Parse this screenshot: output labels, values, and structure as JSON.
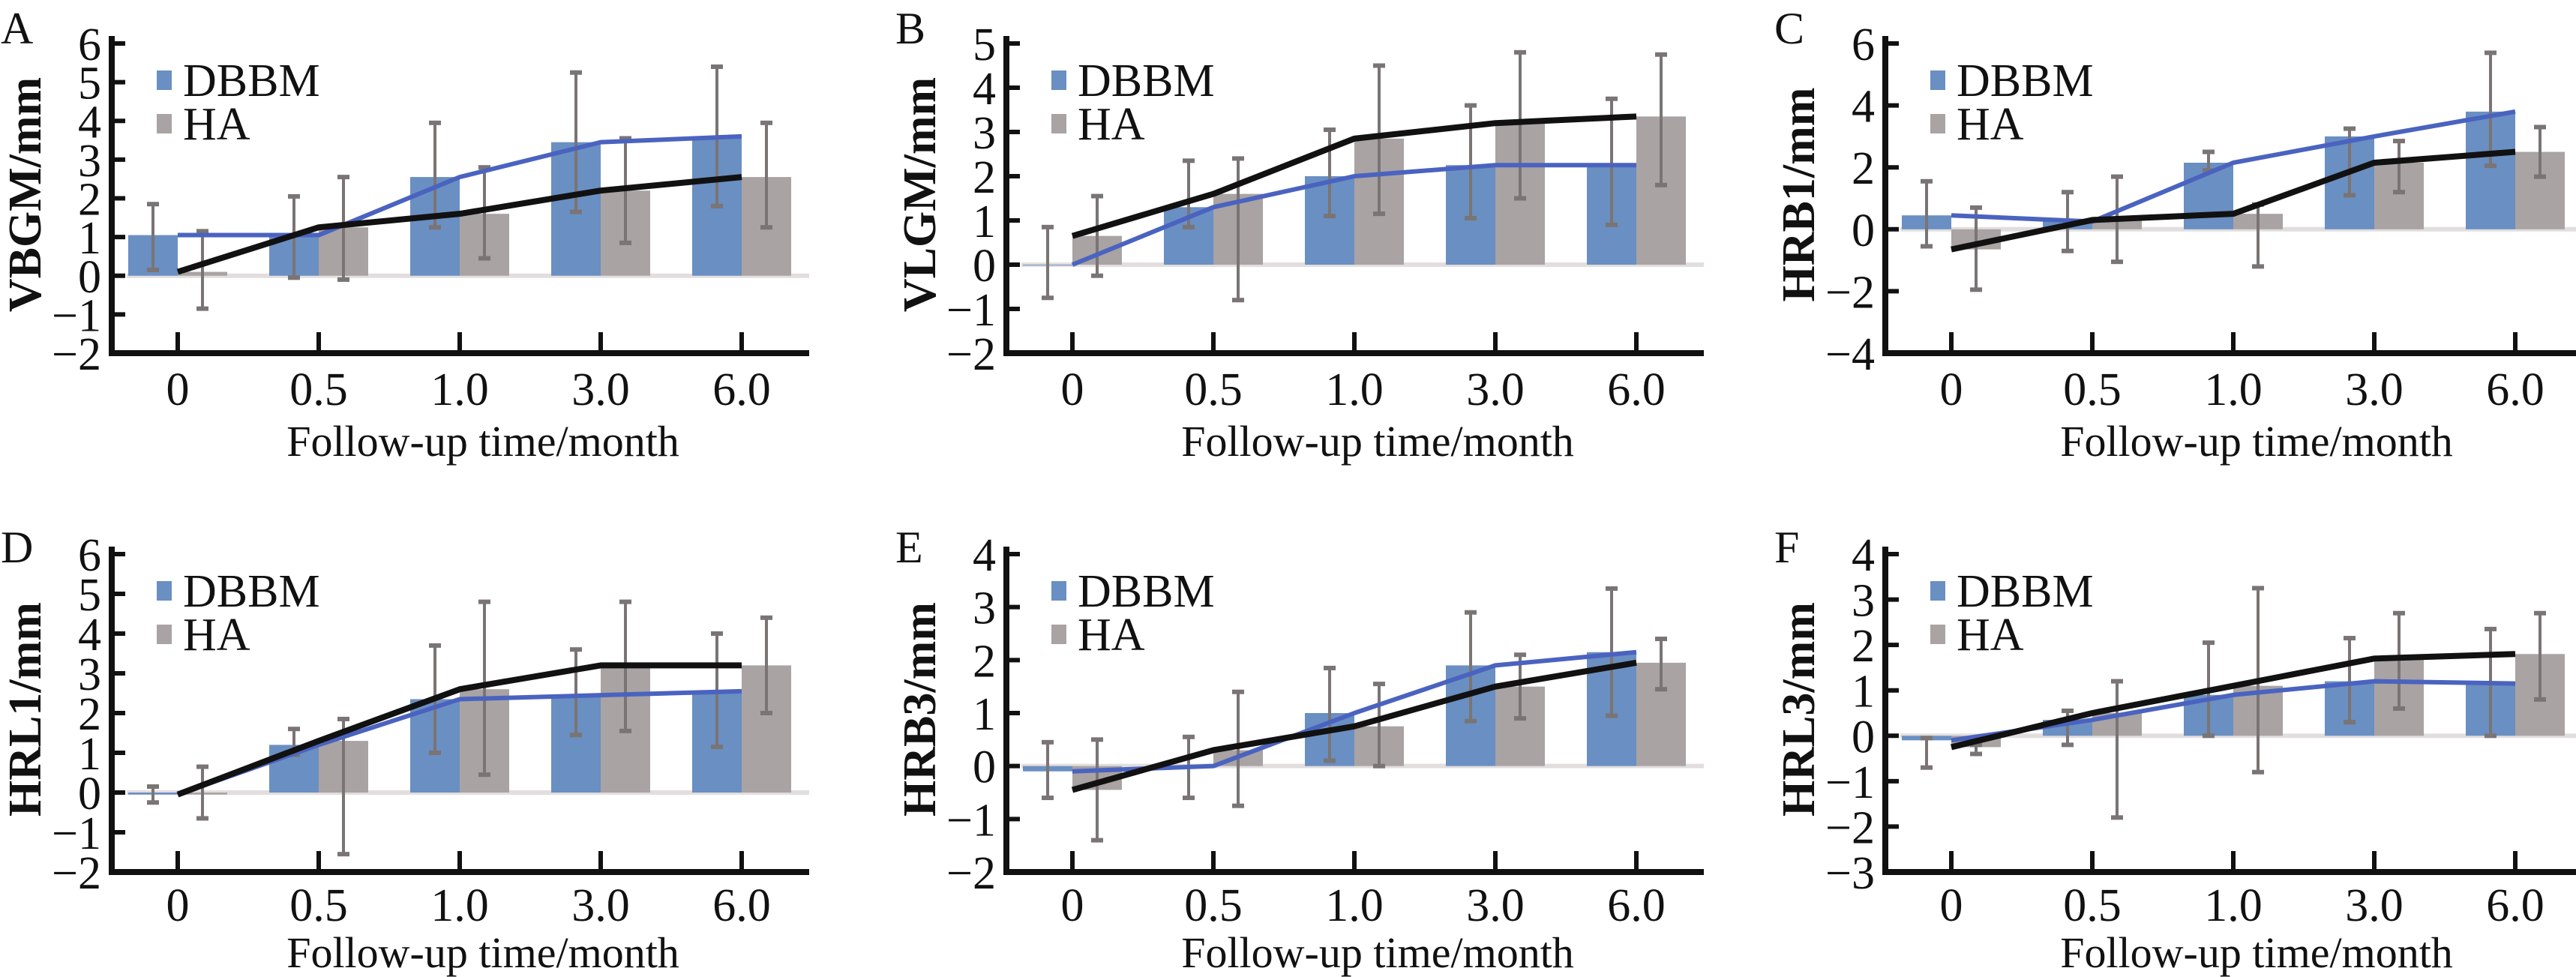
{
  "figure": {
    "colors": {
      "DBBM_bar": "#6a8fc2",
      "HA_bar": "#a9a3a3",
      "DBBM_line": "#4a63c0",
      "HA_line": "#111111",
      "error_bar": "#7a7474",
      "zero_line": "#e3dede",
      "axis": "#111111"
    }
  },
  "chart_data": [
    {
      "panel": "A",
      "type": "bar",
      "title": "",
      "xlabel": "Follow-up time/month",
      "ylabel": "VBGM/mm",
      "categories": [
        "0",
        "0.5",
        "1.0",
        "3.0",
        "6.0"
      ],
      "ylim": [
        -2,
        6
      ],
      "yticks": [
        -2,
        -1,
        0,
        1,
        2,
        3,
        4,
        5,
        6
      ],
      "legend": [
        "DBBM",
        "HA"
      ],
      "legend_position": "top-left",
      "series": [
        {
          "name": "DBBM",
          "values": [
            1.05,
            1.05,
            2.55,
            3.45,
            3.6
          ],
          "err_low": [
            0.15,
            -0.05,
            1.25,
            1.65,
            1.8
          ],
          "err_high": [
            1.85,
            2.05,
            3.95,
            5.25,
            5.4
          ]
        },
        {
          "name": "HA",
          "values": [
            0.1,
            1.25,
            1.6,
            2.2,
            2.55
          ],
          "err_low": [
            -0.85,
            -0.1,
            0.45,
            0.85,
            1.25
          ],
          "err_high": [
            1.15,
            2.55,
            2.8,
            3.55,
            3.95
          ]
        }
      ]
    },
    {
      "panel": "B",
      "type": "bar",
      "title": "",
      "xlabel": "Follow-up time/month",
      "ylabel": "VLGM/mm",
      "categories": [
        "0",
        "0.5",
        "1.0",
        "3.0",
        "6.0"
      ],
      "ylim": [
        -2,
        5
      ],
      "yticks": [
        -2,
        -1,
        0,
        1,
        2,
        3,
        4,
        5
      ],
      "legend": [
        "DBBM",
        "HA"
      ],
      "legend_position": "top-left",
      "series": [
        {
          "name": "DBBM",
          "values": [
            0.0,
            1.3,
            2.0,
            2.25,
            2.25
          ],
          "err_low": [
            -0.75,
            0.85,
            1.1,
            1.05,
            0.9
          ],
          "err_high": [
            0.85,
            2.35,
            3.05,
            3.6,
            3.75
          ]
        },
        {
          "name": "HA",
          "values": [
            0.65,
            1.6,
            2.85,
            3.2,
            3.35
          ],
          "err_low": [
            -0.25,
            -0.8,
            1.15,
            1.5,
            1.8
          ],
          "err_high": [
            1.55,
            2.4,
            4.5,
            4.8,
            4.75
          ]
        }
      ]
    },
    {
      "panel": "C",
      "type": "bar",
      "title": "",
      "xlabel": "Follow-up time/month",
      "ylabel": "HRB1/mm",
      "categories": [
        "0",
        "0.5",
        "1.0",
        "3.0",
        "6.0"
      ],
      "ylim": [
        -4,
        6
      ],
      "yticks": [
        -4,
        -2,
        0,
        2,
        4,
        6
      ],
      "legend": [
        "DBBM",
        "HA"
      ],
      "legend_position": "top-left",
      "series": [
        {
          "name": "DBBM",
          "values": [
            0.45,
            0.25,
            2.15,
            3.0,
            3.8
          ],
          "err_low": [
            -0.55,
            -0.7,
            1.9,
            1.1,
            2.05
          ],
          "err_high": [
            1.55,
            1.2,
            2.5,
            3.25,
            5.7
          ]
        },
        {
          "name": "HA",
          "values": [
            -0.65,
            0.3,
            0.5,
            2.15,
            2.5
          ],
          "err_low": [
            -1.95,
            -1.05,
            -1.2,
            1.2,
            1.7
          ],
          "err_high": [
            0.7,
            1.7,
            0.8,
            2.85,
            3.3
          ]
        }
      ]
    },
    {
      "panel": "D",
      "type": "bar",
      "title": "",
      "xlabel": "Follow-up time/month",
      "ylabel": "HRL1/mm",
      "categories": [
        "0",
        "0.5",
        "1.0",
        "3.0",
        "6.0"
      ],
      "ylim": [
        -2,
        6
      ],
      "yticks": [
        -2,
        -1,
        0,
        1,
        2,
        3,
        4,
        5,
        6
      ],
      "legend": [
        "DBBM",
        "HA"
      ],
      "legend_position": "top-left",
      "series": [
        {
          "name": "DBBM",
          "values": [
            -0.05,
            1.2,
            2.35,
            2.45,
            2.55
          ],
          "err_low": [
            -0.25,
            0.95,
            1.0,
            1.45,
            1.15
          ],
          "err_high": [
            0.15,
            1.6,
            3.7,
            3.6,
            4.0
          ]
        },
        {
          "name": "HA",
          "values": [
            -0.05,
            1.3,
            2.6,
            3.2,
            3.2
          ],
          "err_low": [
            -0.65,
            -1.55,
            0.45,
            1.55,
            2.0
          ],
          "err_high": [
            0.65,
            1.85,
            4.8,
            4.8,
            4.4
          ]
        }
      ]
    },
    {
      "panel": "E",
      "type": "bar",
      "title": "",
      "xlabel": "Follow-up time/month",
      "ylabel": "HRB3/mm",
      "categories": [
        "0",
        "0.5",
        "1.0",
        "3.0",
        "6.0"
      ],
      "ylim": [
        -2,
        4
      ],
      "yticks": [
        -2,
        -1,
        0,
        1,
        2,
        3,
        4
      ],
      "legend": [
        "DBBM",
        "HA"
      ],
      "legend_position": "top-left",
      "series": [
        {
          "name": "DBBM",
          "values": [
            -0.1,
            0.0,
            1.0,
            1.9,
            2.15
          ],
          "err_low": [
            -0.6,
            -0.6,
            0.1,
            0.85,
            0.95
          ],
          "err_high": [
            0.45,
            0.55,
            1.85,
            2.9,
            3.35
          ]
        },
        {
          "name": "HA",
          "values": [
            -0.45,
            0.3,
            0.75,
            1.5,
            1.95
          ],
          "err_low": [
            -1.4,
            -0.75,
            0.0,
            0.9,
            1.45
          ],
          "err_high": [
            0.5,
            1.4,
            1.55,
            2.1,
            2.4
          ]
        }
      ]
    },
    {
      "panel": "F",
      "type": "bar",
      "title": "",
      "xlabel": "Follow-up time/month",
      "ylabel": "HRL3/mm",
      "categories": [
        "0",
        "0.5",
        "1.0",
        "3.0",
        "6.0"
      ],
      "ylim": [
        -3,
        4
      ],
      "yticks": [
        -3,
        -2,
        -1,
        0,
        1,
        2,
        3,
        4
      ],
      "legend": [
        "DBBM",
        "HA"
      ],
      "legend_position": "top-left",
      "series": [
        {
          "name": "DBBM",
          "values": [
            -0.1,
            0.35,
            0.9,
            1.2,
            1.15
          ],
          "err_low": [
            -0.7,
            -0.2,
            0.0,
            0.3,
            0.0
          ],
          "err_high": [
            -0.05,
            0.55,
            2.05,
            2.15,
            2.35
          ]
        },
        {
          "name": "HA",
          "values": [
            -0.25,
            0.5,
            1.1,
            1.7,
            1.8
          ],
          "err_low": [
            -0.4,
            -1.8,
            -0.8,
            0.6,
            0.8
          ],
          "err_high": [
            -0.2,
            1.2,
            3.25,
            2.7,
            2.7
          ]
        }
      ]
    }
  ]
}
